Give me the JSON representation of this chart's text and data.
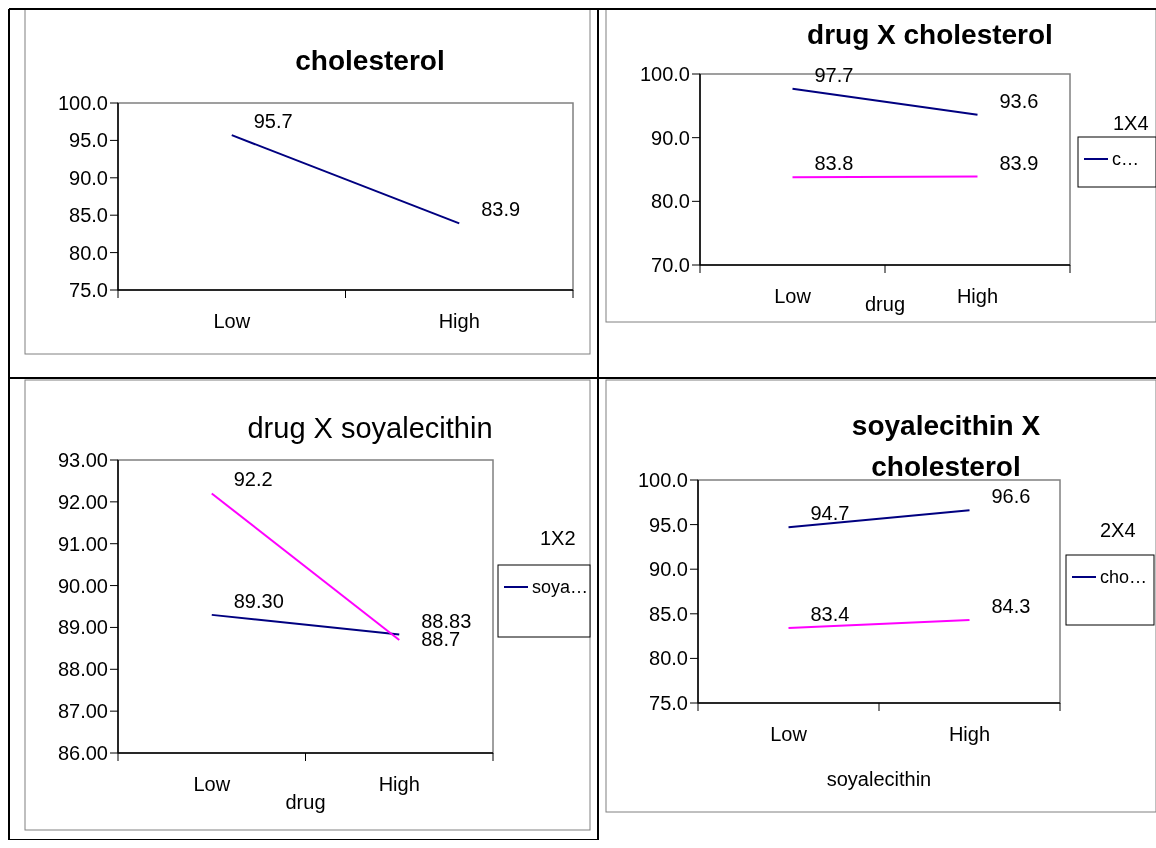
{
  "chart_data": [
    {
      "type": "line",
      "title": "cholesterol",
      "categories": [
        "Low",
        "High"
      ],
      "series": [
        {
          "color": "#000080",
          "values": [
            95.7,
            83.9
          ],
          "value_labels": [
            "95.7",
            "83.9"
          ]
        }
      ],
      "ylim": [
        75,
        100
      ],
      "yticks": [
        {
          "value": 75,
          "label": "75.0"
        },
        {
          "value": 80,
          "label": "80.0"
        },
        {
          "value": 85,
          "label": "85.0"
        },
        {
          "value": 90,
          "label": "90.0"
        },
        {
          "value": 95,
          "label": "95.0"
        },
        {
          "value": 100,
          "label": "100.0"
        }
      ],
      "grid": false,
      "legend": false,
      "marker": "none",
      "line_style": "solid"
    },
    {
      "type": "line",
      "title": "drug X cholesterol",
      "xlabel": "drug",
      "legend_title": "1X4",
      "categories": [
        "Low",
        "High"
      ],
      "series": [
        {
          "name": "c…",
          "color": "#000080",
          "values": [
            97.7,
            93.6
          ],
          "value_labels": [
            "97.7",
            "93.6"
          ]
        },
        {
          "color": "#ff00ff",
          "values": [
            83.8,
            83.9
          ],
          "value_labels": [
            "83.8",
            "83.9"
          ]
        }
      ],
      "ylim": [
        70,
        100
      ],
      "yticks": [
        {
          "value": 70,
          "label": "70.0"
        },
        {
          "value": 80,
          "label": "80.0"
        },
        {
          "value": 90,
          "label": "90.0"
        },
        {
          "value": 100,
          "label": "100.0"
        }
      ],
      "grid": false,
      "legend": "right",
      "marker": "none",
      "line_style": "solid"
    },
    {
      "type": "line",
      "title": "drug X soyalecithin",
      "xlabel": "drug",
      "legend_title": "1X2",
      "categories": [
        "Low",
        "High"
      ],
      "series": [
        {
          "name": "soya…",
          "color": "#000080",
          "values": [
            89.3,
            88.83
          ],
          "value_labels": [
            "89.30",
            "88.83"
          ]
        },
        {
          "color": "#ff00ff",
          "values": [
            92.2,
            88.7
          ],
          "value_labels": [
            "92.2",
            "88.7"
          ]
        }
      ],
      "ylim": [
        86,
        93
      ],
      "yticks": [
        {
          "value": 86,
          "label": "86.00"
        },
        {
          "value": 87,
          "label": "87.00"
        },
        {
          "value": 88,
          "label": "88.00"
        },
        {
          "value": 89,
          "label": "89.00"
        },
        {
          "value": 90,
          "label": "90.00"
        },
        {
          "value": 91,
          "label": "91.00"
        },
        {
          "value": 92,
          "label": "92.00"
        },
        {
          "value": 93,
          "label": "93.00"
        }
      ],
      "grid": false,
      "legend": "right",
      "marker": "none",
      "line_style": "solid"
    },
    {
      "type": "line",
      "title": "soyalecithin X\ncholesterol",
      "xlabel": "soyalecithin",
      "legend_title": "2X4",
      "categories": [
        "Low",
        "High"
      ],
      "series": [
        {
          "name": "cho…",
          "color": "#000080",
          "values": [
            94.7,
            96.6
          ],
          "value_labels": [
            "94.7",
            "96.6"
          ]
        },
        {
          "color": "#ff00ff",
          "values": [
            83.4,
            84.3
          ],
          "value_labels": [
            "83.4",
            "84.3"
          ]
        }
      ],
      "ylim": [
        75,
        100
      ],
      "yticks": [
        {
          "value": 75,
          "label": "75.0"
        },
        {
          "value": 80,
          "label": "80.0"
        },
        {
          "value": 85,
          "label": "85.0"
        },
        {
          "value": 90,
          "label": "90.0"
        },
        {
          "value": 95,
          "label": "95.0"
        },
        {
          "value": 100,
          "label": "100.0"
        }
      ],
      "grid": false,
      "legend": "right",
      "marker": "none",
      "line_style": "solid"
    }
  ]
}
